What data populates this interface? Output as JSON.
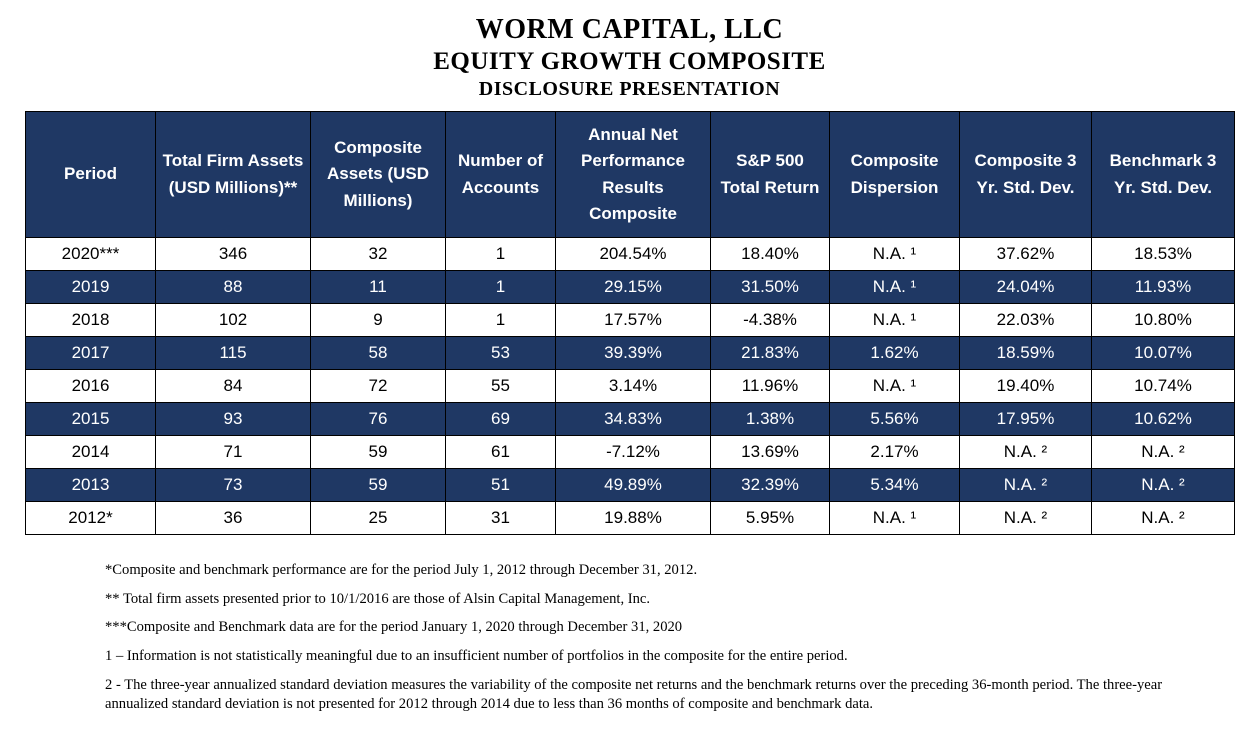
{
  "title": {
    "line1": "WORM CAPITAL, LLC",
    "line2": "EQUITY GROWTH COMPOSITE",
    "line3": "DISCLOSURE PRESENTATION"
  },
  "colors": {
    "navy": "#1F3864",
    "header_text": "#FFFFFF",
    "body_text": "#000000"
  },
  "table": {
    "headers": [
      "Period",
      "Total Firm Assets (USD Millions)**",
      "Composite Assets (USD Millions)",
      "Number of Accounts",
      "Annual Net Performance Results Composite",
      "S&P 500 Total Return",
      "Composite Dispersion",
      "Composite 3 Yr. Std. Dev.",
      "Benchmark 3 Yr. Std. Dev."
    ],
    "rows": [
      [
        "2020***",
        "346",
        "32",
        "1",
        "204.54%",
        "18.40%",
        "N.A. ¹",
        "37.62%",
        "18.53%"
      ],
      [
        "2019",
        "88",
        "11",
        "1",
        "29.15%",
        "31.50%",
        "N.A. ¹",
        "24.04%",
        "11.93%"
      ],
      [
        "2018",
        "102",
        "9",
        "1",
        "17.57%",
        "-4.38%",
        "N.A. ¹",
        "22.03%",
        "10.80%"
      ],
      [
        "2017",
        "115",
        "58",
        "53",
        "39.39%",
        "21.83%",
        "1.62%",
        "18.59%",
        "10.07%"
      ],
      [
        "2016",
        "84",
        "72",
        "55",
        "3.14%",
        "11.96%",
        "N.A. ¹",
        "19.40%",
        "10.74%"
      ],
      [
        "2015",
        "93",
        "76",
        "69",
        "34.83%",
        "1.38%",
        "5.56%",
        "17.95%",
        "10.62%"
      ],
      [
        "2014",
        "71",
        "59",
        "61",
        "-7.12%",
        "13.69%",
        "2.17%",
        "N.A. ²",
        "N.A. ²"
      ],
      [
        "2013",
        "73",
        "59",
        "51",
        "49.89%",
        "32.39%",
        "5.34%",
        "N.A. ²",
        "N.A. ²"
      ],
      [
        "2012*",
        "36",
        "25",
        "31",
        "19.88%",
        "5.95%",
        "N.A. ¹",
        "N.A. ²",
        "N.A. ²"
      ]
    ]
  },
  "footnotes": [
    "*Composite and benchmark performance are for the period July 1, 2012 through December 31, 2012.",
    "** Total firm assets presented prior to 10/1/2016 are those of Alsin Capital Management, Inc.",
    "***Composite and Benchmark data are for the period January 1, 2020 through December 31, 2020",
    "1 – Information is not statistically meaningful due to an insufficient number of portfolios in the composite for the entire period.",
    "2 - The three-year annualized standard deviation measures the variability of the composite net returns and the benchmark returns over the preceding 36-month period. The three-year annualized standard deviation is not presented for 2012 through 2014 due to less than 36 months of composite and benchmark data."
  ]
}
